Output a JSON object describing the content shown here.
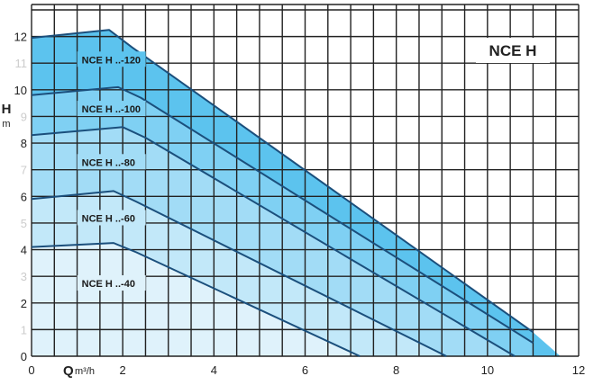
{
  "chart_data": {
    "type": "line",
    "title": "NCE H",
    "xlabel": "Q",
    "xunit": "m³/h",
    "ylabel": "H",
    "yunit": "m",
    "xlim": [
      0,
      12
    ],
    "ylim": [
      0,
      13
    ],
    "grid": true,
    "xticks": [
      "0",
      "2",
      "4",
      "6",
      "8",
      "10",
      "12"
    ],
    "yticks": [
      "0",
      "1",
      "2",
      "3",
      "4",
      "5",
      "6",
      "7",
      "8",
      "9",
      "10",
      "11",
      "12"
    ],
    "series": [
      {
        "name": "NCE H ..-120",
        "color": "#5cc3ee",
        "label_at": [
          1.1,
          11.1
        ],
        "points": [
          [
            0,
            11.95
          ],
          [
            1.7,
            12.25
          ],
          [
            2.2,
            11.6
          ],
          [
            11.0,
            0.9
          ]
        ],
        "fill_end": [
          11.6,
          0
        ]
      },
      {
        "name": "NCE H ..-100",
        "color": "#7fd0f3",
        "label_at": [
          1.1,
          9.25
        ],
        "points": [
          [
            0,
            9.8
          ],
          [
            1.9,
            10.1
          ],
          [
            2.4,
            9.7
          ],
          [
            11.0,
            0.5
          ]
        ],
        "fill_end": [
          11.0,
          0
        ]
      },
      {
        "name": "NCE H ..-80",
        "color": "#a2dcf6",
        "label_at": [
          1.1,
          7.25
        ],
        "points": [
          [
            0,
            8.3
          ],
          [
            2.0,
            8.6
          ],
          [
            2.5,
            8.2
          ],
          [
            10.6,
            0
          ]
        ]
      },
      {
        "name": "NCE H ..-60",
        "color": "#c2e8f9",
        "label_at": [
          1.1,
          5.15
        ],
        "points": [
          [
            0,
            5.9
          ],
          [
            1.8,
            6.2
          ],
          [
            2.3,
            5.8
          ],
          [
            9.1,
            0
          ]
        ]
      },
      {
        "name": "NCE H ..-40",
        "color": "#dff2fb",
        "label_at": [
          1.1,
          2.7
        ],
        "points": [
          [
            0,
            4.1
          ],
          [
            1.8,
            4.25
          ],
          [
            2.3,
            3.9
          ],
          [
            7.2,
            0
          ]
        ]
      }
    ]
  }
}
